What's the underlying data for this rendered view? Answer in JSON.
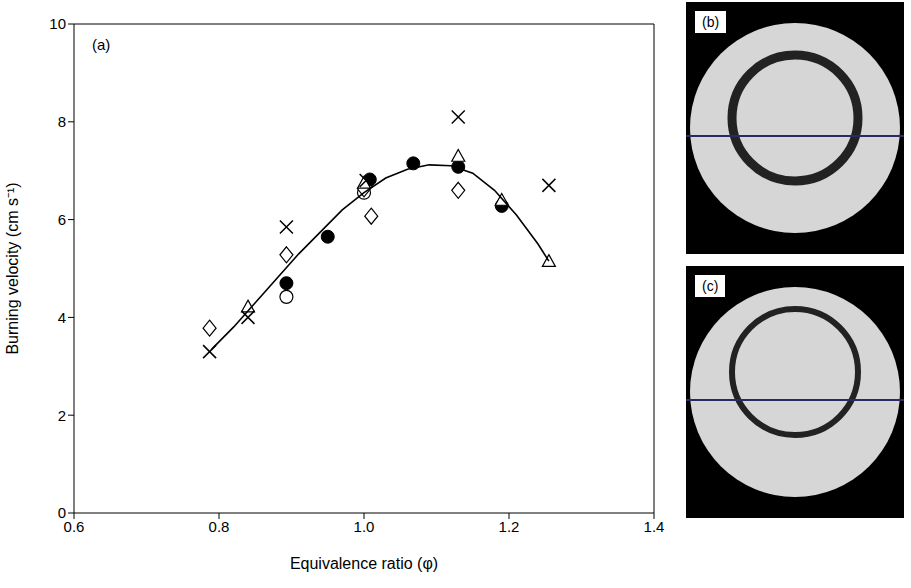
{
  "chart_data": {
    "type": "scatter",
    "x_label": "Equivalence ratio (φ)",
    "y_label": "Burning velocity (cm s⁻¹)",
    "annotations": [
      "(a)"
    ],
    "xlim": [
      0.6,
      1.4
    ],
    "xticks": [
      0.6,
      0.8,
      {
        "value": 1,
        "label": "1.0"
      },
      1.2,
      1.4
    ],
    "ylim": [
      0,
      10
    ],
    "yticks": [
      0,
      2,
      4,
      6,
      8,
      10
    ],
    "grid": false,
    "series": [
      {
        "color": "#000000",
        "marker": "circle",
        "x": [
          0.893,
          0.95,
          1.008,
          1.068,
          1.13,
          1.19
        ],
        "values": [
          4.7,
          5.65,
          6.82,
          7.15,
          7.08,
          6.28
        ]
      },
      {
        "color": "#000000",
        "marker": "circle_open",
        "x": [
          0.893,
          1.0
        ],
        "values": [
          4.42,
          6.55
        ]
      },
      {
        "color": "#000000",
        "marker": "diamond_open",
        "x": [
          0.787,
          0.893,
          1.0,
          1.01,
          1.13
        ],
        "values": [
          3.78,
          5.28,
          6.63,
          6.07,
          6.6
        ]
      },
      {
        "color": "#000000",
        "marker": "triangle_open",
        "x": [
          0.84,
          1.0,
          1.13,
          1.19,
          1.255
        ],
        "values": [
          4.22,
          6.75,
          7.3,
          6.4,
          5.15
        ]
      },
      {
        "color": "#000000",
        "marker": "cross",
        "x": [
          0.787,
          0.84,
          0.893,
          1.003,
          1.13,
          1.255
        ],
        "values": [
          3.3,
          4.0,
          5.85,
          6.8,
          8.1,
          6.7
        ]
      },
      {
        "type": "line",
        "color": "#000000",
        "marker": "none",
        "line_style": "solid",
        "x": [
          0.79,
          0.82,
          0.85,
          0.88,
          0.91,
          0.94,
          0.97,
          1.0,
          1.03,
          1.06,
          1.09,
          1.12,
          1.15,
          1.18,
          1.21,
          1.24,
          1.255
        ],
        "values": [
          3.35,
          3.8,
          4.3,
          4.8,
          5.3,
          5.75,
          6.2,
          6.55,
          6.85,
          7.03,
          7.12,
          7.1,
          6.95,
          6.6,
          6.1,
          5.5,
          5.15
        ]
      }
    ]
  },
  "photos": [
    {
      "label": "(b)"
    },
    {
      "label": "(c)"
    }
  ]
}
